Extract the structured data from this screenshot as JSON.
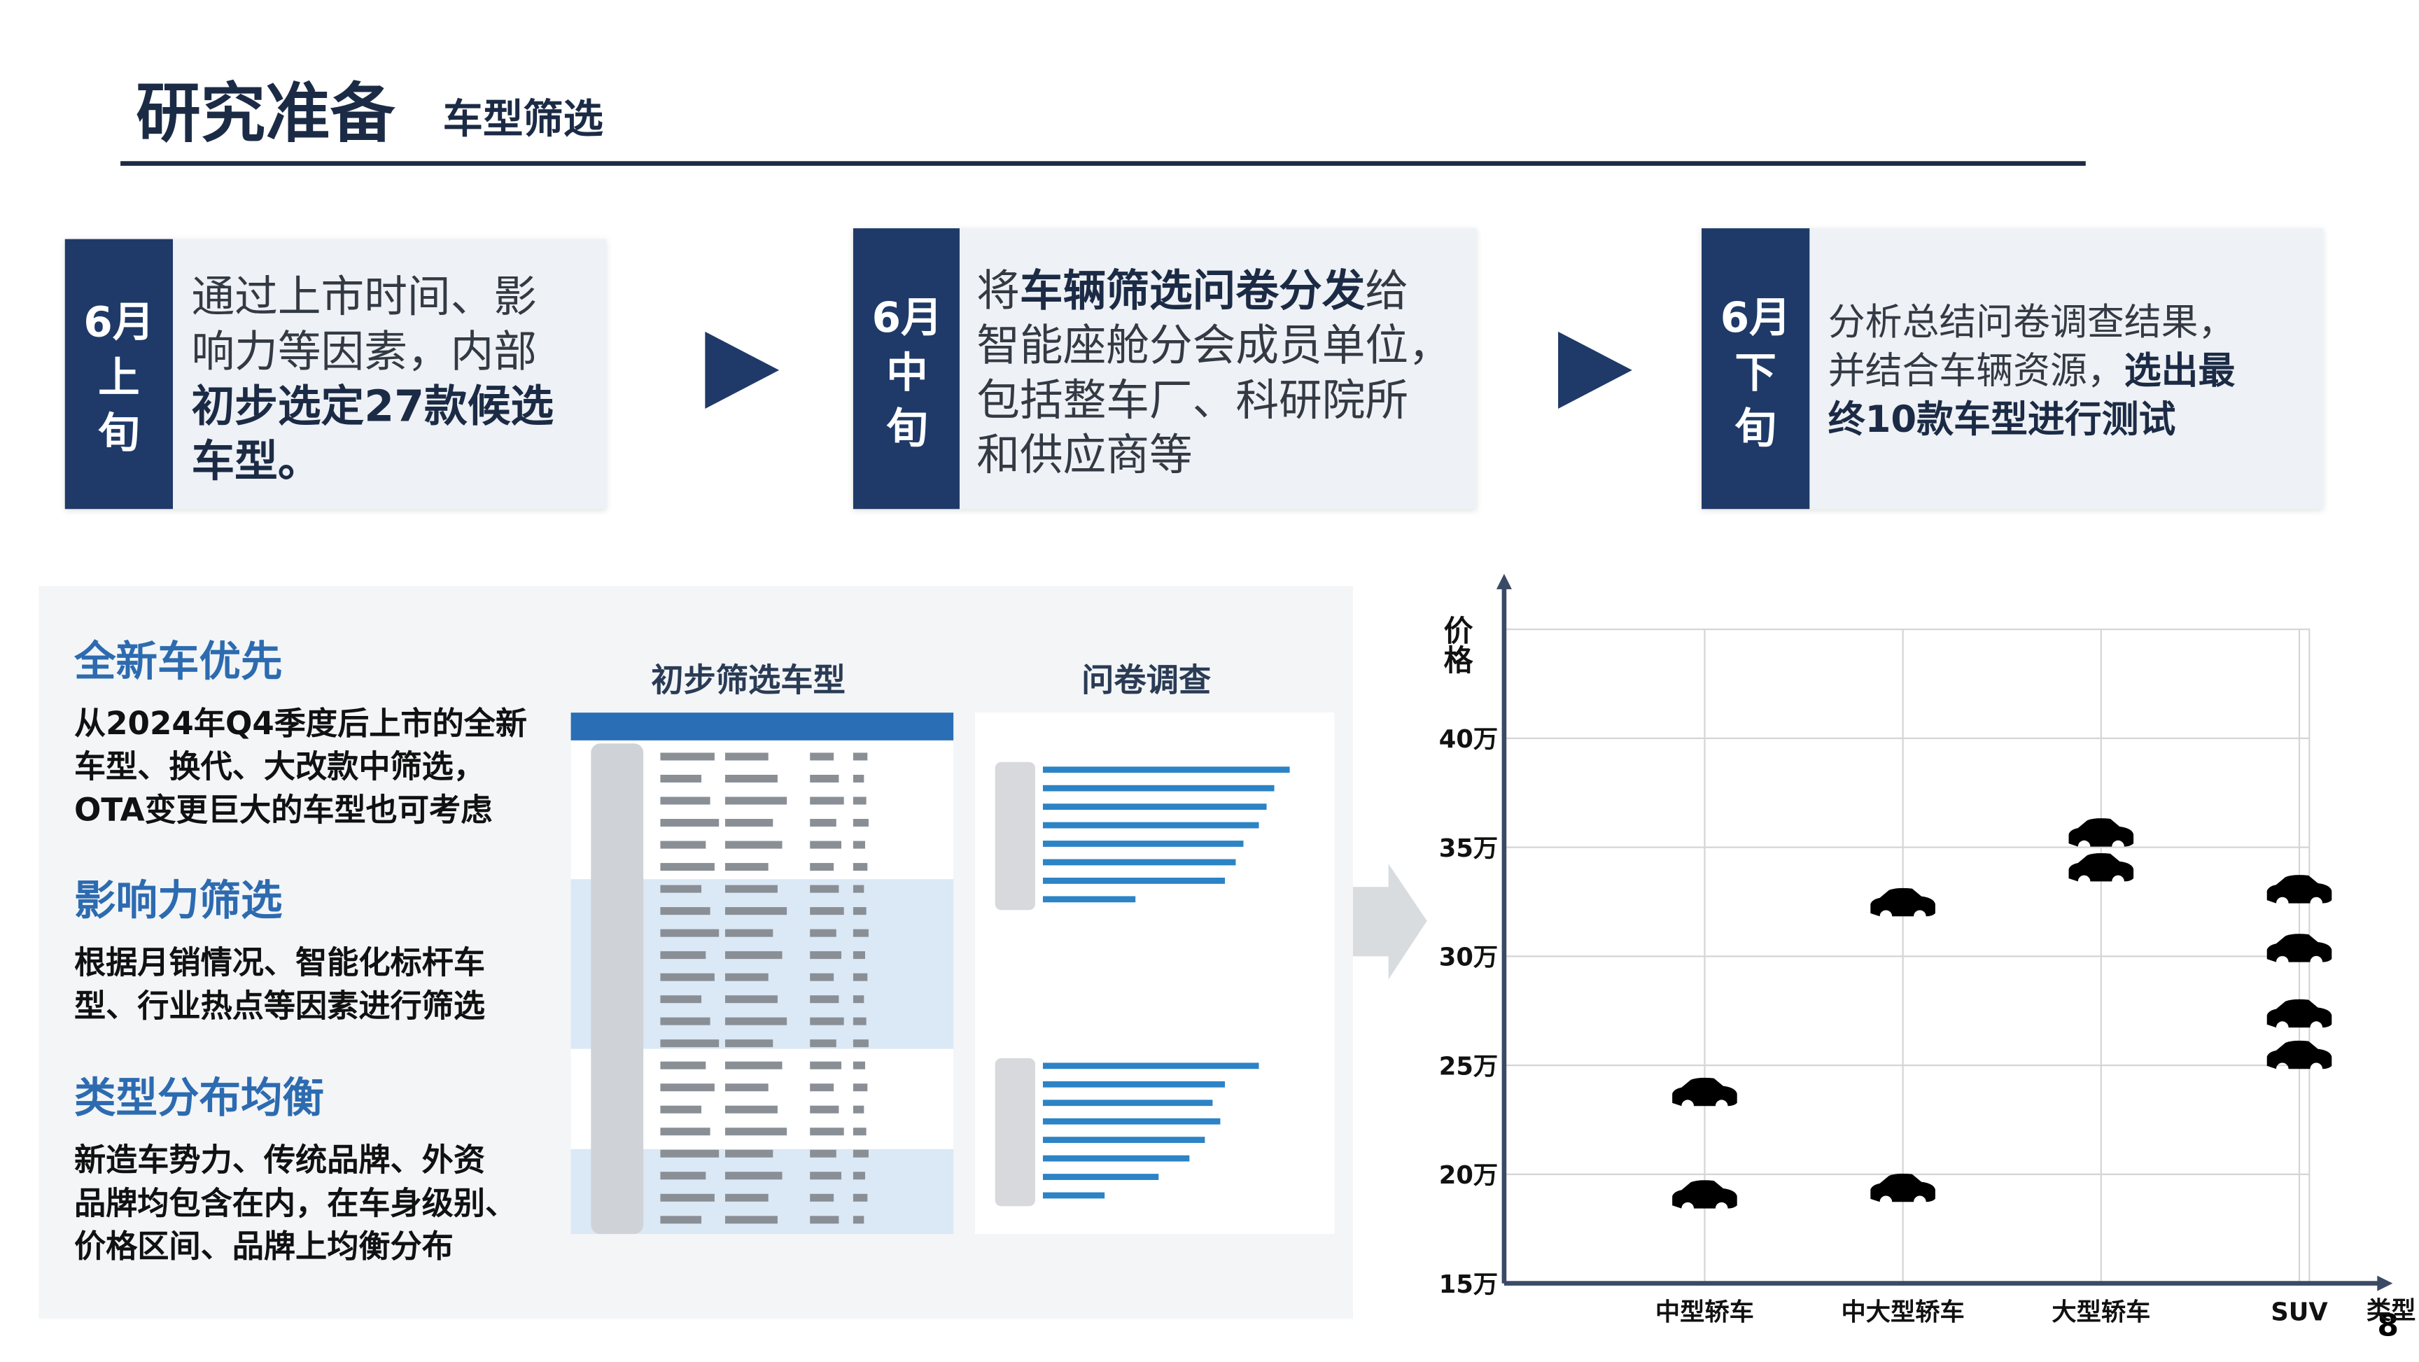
{
  "header": {
    "title": "研究准备",
    "subtitle": "车型筛选"
  },
  "steps": [
    {
      "label_lines": [
        "6月",
        "上",
        "旬"
      ],
      "lines": [
        [
          {
            "text": "通过上市时间、影",
            "bold": false
          }
        ],
        [
          {
            "text": "响力等因素，内部",
            "bold": false
          }
        ],
        [
          {
            "text": "初步选定27款候选",
            "bold": true
          }
        ],
        [
          {
            "text": "车型。",
            "bold": true
          }
        ]
      ]
    },
    {
      "label_lines": [
        "6月",
        "中",
        "旬"
      ],
      "lines": [
        [
          {
            "text": "将",
            "bold": false
          },
          {
            "text": "车辆筛选问卷分发",
            "bold": true
          },
          {
            "text": "给",
            "bold": false
          }
        ],
        [
          {
            "text": "智能座舱分会成员单位，",
            "bold": false
          }
        ],
        [
          {
            "text": "包括整车厂、科研院所",
            "bold": false
          }
        ],
        [
          {
            "text": "和供应商等",
            "bold": false
          }
        ]
      ]
    },
    {
      "label_lines": [
        "6月",
        "下",
        "旬"
      ],
      "lines": [
        [
          {
            "text": "分析总结问卷调查结果，",
            "bold": false
          }
        ],
        [
          {
            "text": "并结合车辆资源，",
            "bold": false
          },
          {
            "text": "选出最",
            "bold": true
          }
        ],
        [
          {
            "text": "终10款车型进行测试",
            "bold": true
          }
        ]
      ]
    }
  ],
  "criteria": [
    {
      "heading": "全新车优先",
      "lines": [
        "从2024年Q4季度后上市的全新",
        "车型、换代、大改款中筛选，",
        "OTA变更巨大的车型也可考虑"
      ]
    },
    {
      "heading": "影响力筛选",
      "lines": [
        "根据月销情况、智能化标杆车",
        "型、行业热点等因素进行筛选"
      ]
    },
    {
      "heading": "类型分布均衡",
      "lines": [
        "新造车势力、传统品牌、外资",
        "品牌均包含在内，在车身级别、",
        "价格区间、品牌上均衡分布"
      ]
    }
  ],
  "images": {
    "table_title": "初步筛选车型",
    "survey_title": "问卷调查"
  },
  "chart_data": {
    "type": "scatter",
    "y_label": "价格",
    "x_label": "类型",
    "categories": [
      "中型轿车",
      "中大型轿车",
      "大型轿车",
      "SUV"
    ],
    "x": [
      "中型轿车",
      "中型轿车",
      "中大型轿车",
      "中大型轿车",
      "大型轿车",
      "大型轿车",
      "SUV",
      "SUV",
      "SUV",
      "SUV"
    ],
    "values": [
      23.7,
      19,
      32.4,
      19.3,
      35.6,
      34,
      33,
      30.3,
      27.3,
      25.4
    ],
    "color": "#000000",
    "ylim": [
      15,
      45
    ],
    "yticks": [
      {
        "value": 15,
        "label": "15万"
      },
      {
        "value": 20,
        "label": "20万"
      },
      {
        "value": 25,
        "label": "25万"
      },
      {
        "value": 30,
        "label": "30万"
      },
      {
        "value": 35,
        "label": "35万"
      },
      {
        "value": 40,
        "label": "40万"
      }
    ],
    "grid": true
  },
  "page_number": "8"
}
